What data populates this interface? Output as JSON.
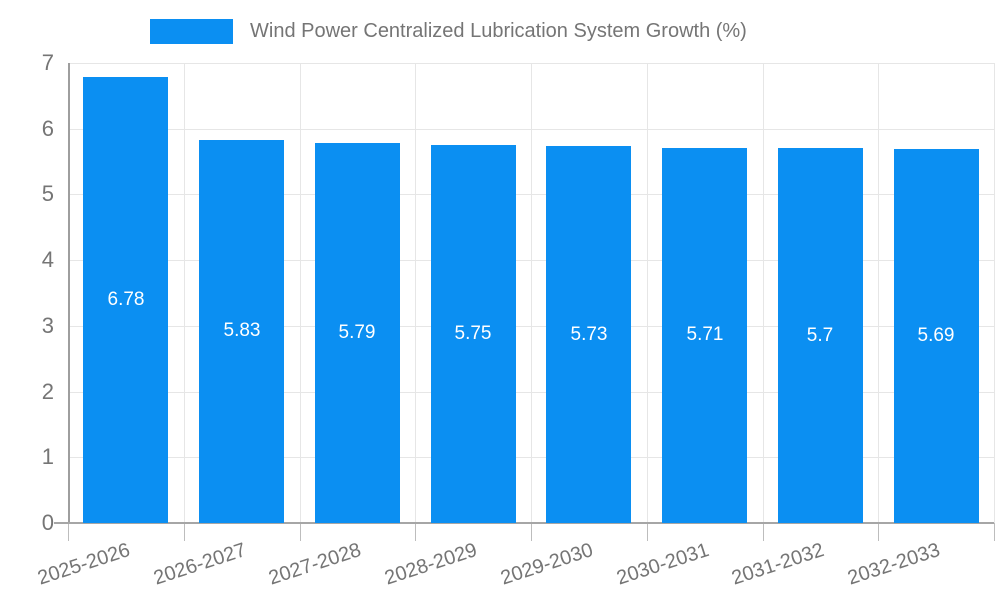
{
  "chart_data": {
    "type": "bar",
    "title": "Wind Power Centralized Lubrication System Growth (%)",
    "categories": [
      "2025-2026",
      "2026-2027",
      "2027-2028",
      "2028-2029",
      "2029-2030",
      "2030-2031",
      "2031-2032",
      "2032-2033"
    ],
    "values": [
      6.78,
      5.83,
      5.79,
      5.75,
      5.73,
      5.71,
      5.7,
      5.69
    ],
    "value_labels": [
      "6.78",
      "5.83",
      "5.79",
      "5.75",
      "5.73",
      "5.71",
      "5.7",
      "5.69"
    ],
    "xlabel": "",
    "ylabel": "",
    "ylim": [
      0,
      7
    ],
    "y_ticks": [
      0,
      1,
      2,
      3,
      4,
      5,
      6,
      7
    ],
    "grid": true,
    "legend_position": "top",
    "colors": {
      "bar": "#0b8ff2",
      "value_label_text": "#ffffff",
      "legend_text": "#757575",
      "tick_text": "#757575",
      "gridline": "#e6e6e6",
      "axis_line": "#a0a0a0",
      "background": "#ffffff"
    }
  }
}
